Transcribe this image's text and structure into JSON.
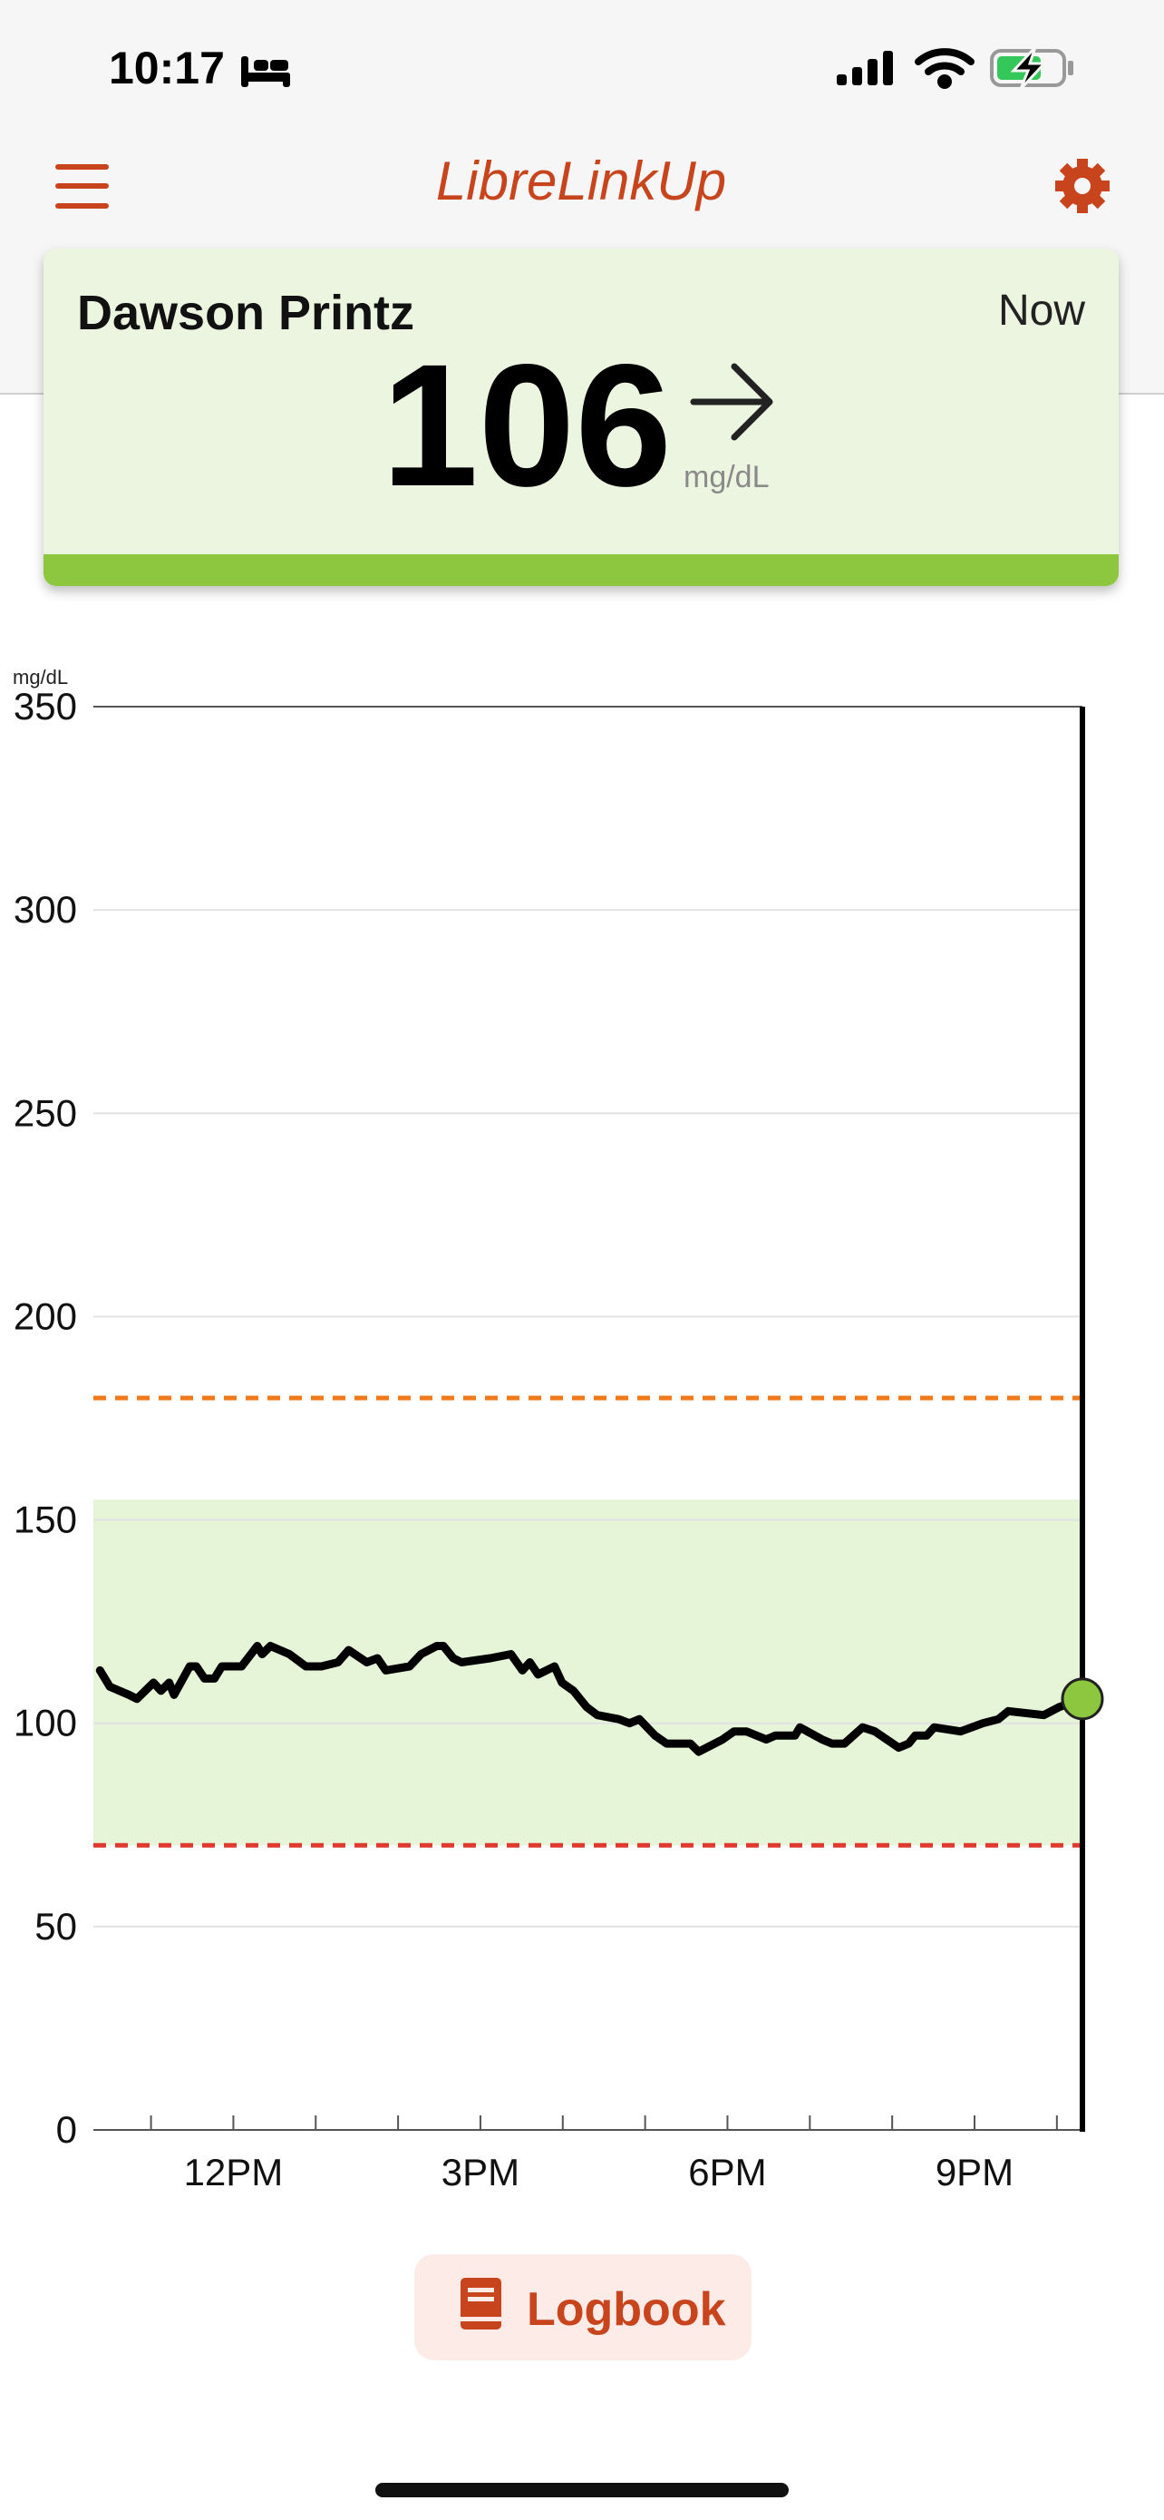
{
  "status_bar": {
    "time": "10:17"
  },
  "header": {
    "title": "LibreLinkUp"
  },
  "card": {
    "name": "Dawson Printz",
    "time": "Now",
    "value": 106,
    "unit": "mg/dL"
  },
  "chart_data": {
    "type": "line",
    "y_label": "mg/dL",
    "x": [
      10.38,
      10.5,
      10.73,
      10.83,
      11.03,
      11.12,
      11.22,
      11.28,
      11.47,
      11.55,
      11.65,
      11.77,
      11.86,
      12.1,
      12.29,
      12.35,
      12.45,
      12.68,
      12.88,
      13.07,
      13.27,
      13.4,
      13.62,
      13.75,
      13.85,
      14.14,
      14.28,
      14.47,
      14.55,
      14.67,
      14.77,
      15.12,
      15.37,
      15.51,
      15.6,
      15.7,
      15.9,
      15.99,
      16.13,
      16.29,
      16.42,
      16.68,
      16.81,
      16.93,
      17.12,
      17.26,
      17.55,
      17.65,
      17.94,
      18.08,
      18.23,
      18.47,
      18.58,
      18.82,
      18.88,
      19.15,
      19.27,
      19.42,
      19.64,
      19.79,
      20.08,
      20.2,
      20.28,
      20.42,
      20.51,
      20.83,
      21.1,
      21.29,
      21.41,
      21.84,
      22.03,
      22.31
    ],
    "series": [
      {
        "color": "#000000",
        "values": [
          113,
          109,
          107,
          106,
          110,
          108,
          110,
          107,
          114,
          114,
          111,
          111,
          114,
          114,
          119,
          117,
          119,
          117,
          114,
          114,
          115,
          118,
          115,
          116,
          113,
          114,
          117,
          119,
          119,
          116,
          115,
          116,
          117,
          113,
          115,
          112,
          114,
          110,
          108,
          104,
          102,
          101,
          100,
          101,
          97,
          95,
          95,
          93,
          96,
          98,
          98,
          96,
          97,
          97,
          99,
          96,
          95,
          95,
          99,
          98,
          94,
          95,
          97,
          97,
          99,
          98,
          100,
          101,
          103,
          102,
          104,
          106
        ]
      }
    ],
    "xlim": [
      10.3,
      22.31
    ],
    "ylim": [
      0,
      350
    ],
    "yticks": [
      0,
      50,
      100,
      150,
      200,
      250,
      300,
      350
    ],
    "xticks": [
      {
        "value": 12,
        "label": "12PM"
      },
      {
        "value": 15,
        "label": "3PM"
      },
      {
        "value": 18,
        "label": "6PM"
      },
      {
        "value": 21,
        "label": "9PM"
      }
    ],
    "xminorticks": [
      11,
      13,
      14,
      16,
      17,
      19,
      20,
      22
    ],
    "grid": true,
    "target_range": [
      70,
      155
    ],
    "target_range_color": "#e6f4d7",
    "high_line": 180,
    "high_line_color": "#f07a1a",
    "low_line": 70,
    "low_line_color": "#e03a2f",
    "current_marker_color": "#8dc63f"
  },
  "button": {
    "label": "Logbook"
  }
}
